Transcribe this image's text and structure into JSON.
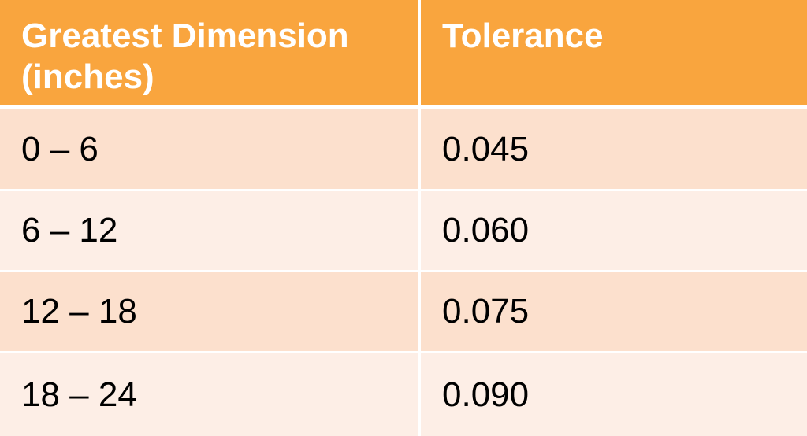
{
  "table": {
    "headers": [
      "Greatest Dimension (inches)",
      "Tolerance"
    ],
    "rows": [
      [
        "0 – 6",
        "0.045"
      ],
      [
        "6 – 12",
        "0.060"
      ],
      [
        "12 – 18",
        "0.075"
      ],
      [
        "18 – 24",
        "0.090"
      ]
    ]
  },
  "colors": {
    "header_bg": "#f9a53e",
    "header_text": "#ffffff",
    "row_odd_bg": "#fce0cd",
    "row_even_bg": "#fdeee6"
  }
}
